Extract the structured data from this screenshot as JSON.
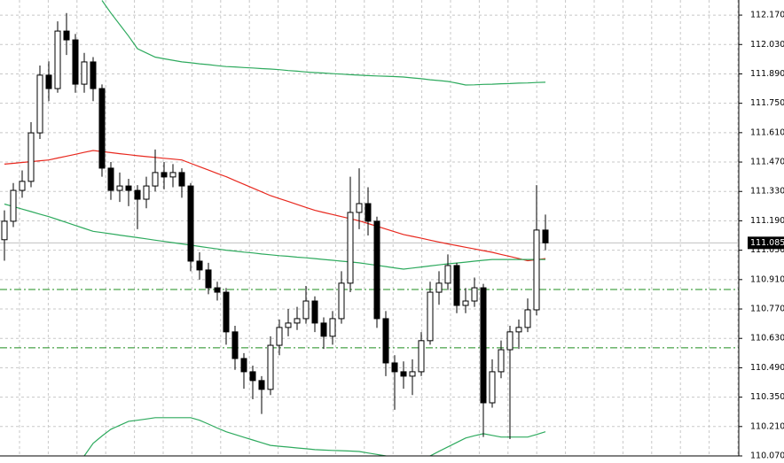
{
  "chart_data": {
    "type": "candlestick",
    "open": [
      111.1,
      111.188,
      111.335,
      111.378,
      111.609,
      111.884,
      111.82,
      112.094,
      112.052,
      111.841,
      111.947,
      111.82,
      111.441,
      111.335,
      111.356,
      111.335,
      111.293,
      111.356,
      111.42,
      111.399,
      111.42,
      111.356,
      110.998,
      110.956,
      110.871,
      110.85,
      110.661,
      110.534,
      110.471,
      110.429,
      110.387,
      110.597,
      110.682,
      110.703,
      110.724,
      110.808,
      110.703,
      110.64,
      110.724,
      110.893,
      111.23,
      111.272,
      111.188,
      110.724,
      110.513,
      110.471,
      110.45,
      110.471,
      110.619,
      110.85,
      110.893,
      110.977,
      110.787,
      110.808,
      110.871,
      110.323,
      110.471,
      110.576,
      110.661,
      110.682,
      110.766,
      111.146
    ],
    "high": [
      111.24,
      111.37,
      111.43,
      111.66,
      111.93,
      111.95,
      112.14,
      112.18,
      112.08,
      111.99,
      111.97,
      111.84,
      111.47,
      111.42,
      111.39,
      111.36,
      111.4,
      111.53,
      111.47,
      111.46,
      111.44,
      111.37,
      111.04,
      110.99,
      110.9,
      110.87,
      110.69,
      110.56,
      110.5,
      110.45,
      110.64,
      110.72,
      110.77,
      110.78,
      110.88,
      110.83,
      110.73,
      110.76,
      110.95,
      111.4,
      111.44,
      111.35,
      111.21,
      110.76,
      110.55,
      110.52,
      110.53,
      110.66,
      110.9,
      110.95,
      111.03,
      110.99,
      110.87,
      110.92,
      110.89,
      110.53,
      110.62,
      110.69,
      110.72,
      110.82,
      111.36,
      111.22
    ],
    "low": [
      111.0,
      111.16,
      111.3,
      111.35,
      111.58,
      111.76,
      111.8,
      111.98,
      111.8,
      111.8,
      111.76,
      111.4,
      111.29,
      111.28,
      111.26,
      111.15,
      111.25,
      111.33,
      111.34,
      111.35,
      111.3,
      110.95,
      110.91,
      110.84,
      110.81,
      110.6,
      110.48,
      110.39,
      110.34,
      110.27,
      110.36,
      110.55,
      110.64,
      110.67,
      110.7,
      110.66,
      110.58,
      110.6,
      110.7,
      110.85,
      111.15,
      111.12,
      110.68,
      110.45,
      110.29,
      110.39,
      110.36,
      110.45,
      110.6,
      110.79,
      110.86,
      110.75,
      110.75,
      110.78,
      110.16,
      110.3,
      110.44,
      110.15,
      110.58,
      110.66,
      110.74,
      111.05
    ],
    "close": [
      111.188,
      111.335,
      111.378,
      111.609,
      111.884,
      111.82,
      112.094,
      112.052,
      111.841,
      111.947,
      111.82,
      111.441,
      111.335,
      111.356,
      111.335,
      111.293,
      111.356,
      111.42,
      111.399,
      111.42,
      111.356,
      110.998,
      110.956,
      110.871,
      110.85,
      110.661,
      110.534,
      110.471,
      110.429,
      110.387,
      110.597,
      110.682,
      110.703,
      110.724,
      110.808,
      110.703,
      110.64,
      110.724,
      110.893,
      111.23,
      111.272,
      111.188,
      110.724,
      110.513,
      110.471,
      110.45,
      110.471,
      110.619,
      110.85,
      110.893,
      110.977,
      110.787,
      110.808,
      110.871,
      110.323,
      110.471,
      110.576,
      110.661,
      110.682,
      110.766,
      111.146,
      111.085
    ],
    "series": [
      {
        "color": "#e8281e",
        "values": [
          111.46,
          111.464,
          111.468,
          111.472,
          111.476,
          111.48,
          111.489,
          111.498,
          111.507,
          111.516,
          111.525,
          111.52,
          111.515,
          111.51,
          111.505,
          111.5,
          111.496,
          111.492,
          111.488,
          111.484,
          111.48,
          111.464,
          111.448,
          111.432,
          111.416,
          111.4,
          111.382,
          111.364,
          111.346,
          111.328,
          111.31,
          111.296,
          111.282,
          111.268,
          111.254,
          111.24,
          111.23,
          111.22,
          111.21,
          111.2,
          111.19,
          111.177,
          111.164,
          111.151,
          111.138,
          111.125,
          111.116,
          111.107,
          111.098,
          111.089,
          111.08,
          111.072,
          111.064,
          111.056,
          111.048,
          111.04,
          111.03,
          111.02,
          111.01,
          111.0,
          111.005,
          111.01
        ]
      },
      {
        "color": "#2eaa5e",
        "values": [
          111.27,
          111.258,
          111.246,
          111.234,
          111.222,
          111.21,
          111.196,
          111.182,
          111.168,
          111.154,
          111.14,
          111.134,
          111.128,
          111.122,
          111.116,
          111.11,
          111.104,
          111.098,
          111.092,
          111.086,
          111.08,
          111.074,
          111.068,
          111.062,
          111.056,
          111.05,
          111.046,
          111.041,
          111.037,
          111.032,
          111.028,
          111.024,
          111.021,
          111.017,
          111.014,
          111.01,
          111.006,
          111.002,
          110.998,
          110.994,
          110.99,
          110.984,
          110.978,
          110.972,
          110.966,
          110.96,
          110.965,
          110.97,
          110.975,
          110.98,
          110.985,
          110.989,
          110.993,
          110.998,
          111.002,
          111.006,
          111.006,
          111.006,
          111.006,
          111.006,
          111.006,
          111.006
        ]
      },
      {
        "color": "#2eaa5e",
        "values": [
          null,
          null,
          null,
          null,
          null,
          null,
          null,
          null,
          null,
          null,
          null,
          112.24,
          112.18,
          112.125,
          112.07,
          112.01,
          111.99,
          111.97,
          111.962,
          111.955,
          111.947,
          111.943,
          111.938,
          111.934,
          111.929,
          111.925,
          111.923,
          111.92,
          111.918,
          111.915,
          111.913,
          111.91,
          111.906,
          111.903,
          111.899,
          111.896,
          111.894,
          111.891,
          111.889,
          111.886,
          111.884,
          111.882,
          111.88,
          111.879,
          111.877,
          111.875,
          111.871,
          111.867,
          111.862,
          111.858,
          111.854,
          111.846,
          111.837,
          111.838,
          111.84,
          111.841,
          111.843,
          111.844,
          111.846,
          111.847,
          111.849,
          111.85
        ]
      },
      {
        "color": "#2eaa5e",
        "values": [
          null,
          null,
          null,
          null,
          null,
          null,
          null,
          null,
          null,
          110.07,
          110.13,
          110.165,
          110.197,
          110.216,
          110.235,
          110.24,
          110.246,
          110.252,
          110.252,
          110.252,
          110.252,
          110.252,
          110.24,
          110.222,
          110.203,
          110.185,
          110.172,
          110.159,
          110.146,
          110.133,
          110.12,
          110.116,
          110.112,
          110.108,
          110.104,
          110.1,
          110.098,
          110.096,
          110.095,
          110.093,
          110.091,
          110.084,
          110.077,
          110.07,
          110.06,
          110.055,
          110.055,
          110.06,
          110.07,
          110.092,
          110.113,
          110.134,
          110.155,
          110.166,
          110.176,
          110.168,
          110.16,
          110.16,
          110.16,
          110.16,
          110.172,
          110.185
        ]
      }
    ],
    "levels": [
      110.863,
      110.585
    ],
    "level_color": "#1e8c1e",
    "current": {
      "value": 111.085,
      "label": "111.085"
    },
    "ylim": [
      110.07,
      112.242
    ],
    "yticks": [
      {
        "value": 112.17,
        "label": "112.170"
      },
      {
        "value": 112.03,
        "label": "112.030"
      },
      {
        "value": 111.89,
        "label": "111.890"
      },
      {
        "value": 111.75,
        "label": "111.750"
      },
      {
        "value": 111.61,
        "label": "111.610"
      },
      {
        "value": 111.47,
        "label": "111.470"
      },
      {
        "value": 111.33,
        "label": "111.330"
      },
      {
        "value": 111.19,
        "label": "111.190"
      },
      {
        "value": 111.05,
        "label": "111.050"
      },
      {
        "value": 110.91,
        "label": "110.910"
      },
      {
        "value": 110.77,
        "label": "110.770"
      },
      {
        "value": 110.63,
        "label": "110.630"
      },
      {
        "value": 110.49,
        "label": "110.490"
      },
      {
        "value": 110.35,
        "label": "110.350"
      },
      {
        "value": 110.21,
        "label": "110.210"
      },
      {
        "value": 110.07,
        "label": "110.070"
      }
    ],
    "grid": true
  }
}
